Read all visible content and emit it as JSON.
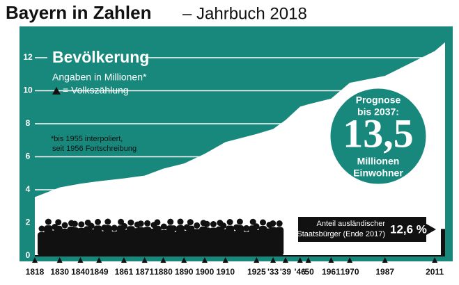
{
  "chart_data": {
    "type": "area",
    "title": "Bayern in Zahlen",
    "subtitle": "– Jahrbuch 2018",
    "heading": "Bevölkerung",
    "unit_note": "Angaben in Millionen*",
    "legend_note": "= Volkszählung",
    "footnote": [
      "*bis 1955 interpoliert,",
      "seit 1956 Fortschreibung"
    ],
    "x": [
      1818,
      1830,
      1840,
      1849,
      1861,
      1871,
      1880,
      1890,
      1900,
      1910,
      1925,
      1933,
      1939,
      1946,
      1950,
      1961,
      1970,
      1987,
      2011,
      2016
    ],
    "values": [
      3.56,
      4.14,
      4.37,
      4.52,
      4.69,
      4.86,
      5.28,
      5.59,
      6.18,
      6.89,
      7.38,
      7.68,
      8.22,
      9.03,
      9.18,
      9.52,
      10.48,
      10.9,
      12.4,
      12.93
    ],
    "color": "#ffffff",
    "background": "#17887b",
    "xlim": [
      1818,
      2016
    ],
    "ylim": [
      0,
      12
    ],
    "yticks": [
      0,
      2,
      4,
      6,
      8,
      10,
      12
    ],
    "xticks": [
      1818,
      1830,
      1840,
      1849,
      1861,
      1871,
      1880,
      1890,
      1900,
      1910,
      1925,
      {
        "value": 1933,
        "label": "'33"
      },
      {
        "value": 1939,
        "label": "'39"
      },
      {
        "value": 1946,
        "label": "'46"
      },
      {
        "value": 1950,
        "label": "'50"
      },
      1961,
      1970,
      1987,
      2011
    ],
    "grid": true,
    "forecast": {
      "top": [
        "Prognose",
        "bis 2037:"
      ],
      "value": 13.5,
      "value_label": "13,5",
      "bottom": [
        "Millionen",
        "Einwohner"
      ]
    },
    "foreign_share": {
      "label": [
        "Anteil ausländischer",
        "Staatsbürger (Ende 2017)"
      ],
      "value": 12.6,
      "value_label": "12,6 %"
    }
  }
}
